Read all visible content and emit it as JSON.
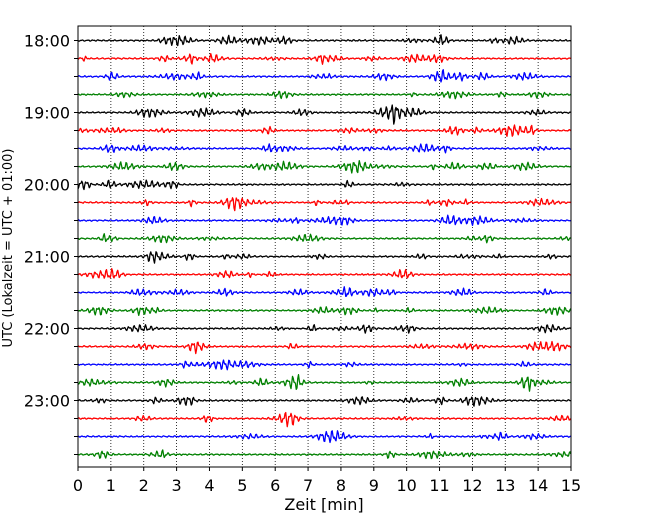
{
  "chart_data": {
    "type": "line",
    "chart_kind": "helicorder (stacked seismogram traces)",
    "title": "",
    "xlabel": "Zeit  [min]",
    "ylabel": "UTC (Lokalzeit = UTC + 01:00)",
    "xlim": [
      0,
      15
    ],
    "x_ticks": [
      "0",
      "1",
      "2",
      "3",
      "4",
      "5",
      "6",
      "7",
      "8",
      "9",
      "10",
      "11",
      "12",
      "13",
      "14",
      "15"
    ],
    "y_tick_labels": [
      "18:00",
      "19:00",
      "20:00",
      "21:00",
      "22:00",
      "23:00"
    ],
    "traces_per_hour": 4,
    "trace_minutes_each": 15,
    "trace_start_times": [
      "18:00",
      "18:15",
      "18:30",
      "18:45",
      "19:00",
      "19:15",
      "19:30",
      "19:45",
      "20:00",
      "20:15",
      "20:30",
      "20:45",
      "21:00",
      "21:15",
      "21:30",
      "21:45",
      "22:00",
      "22:15",
      "22:30",
      "22:45",
      "23:00",
      "23:15",
      "23:30",
      "23:45"
    ],
    "trace_colors_cycle": [
      "#000000",
      "#ff0000",
      "#0000ff",
      "#008000"
    ],
    "vertical_grid": "dotted, every 1 min",
    "grid": true,
    "legend": "none"
  }
}
